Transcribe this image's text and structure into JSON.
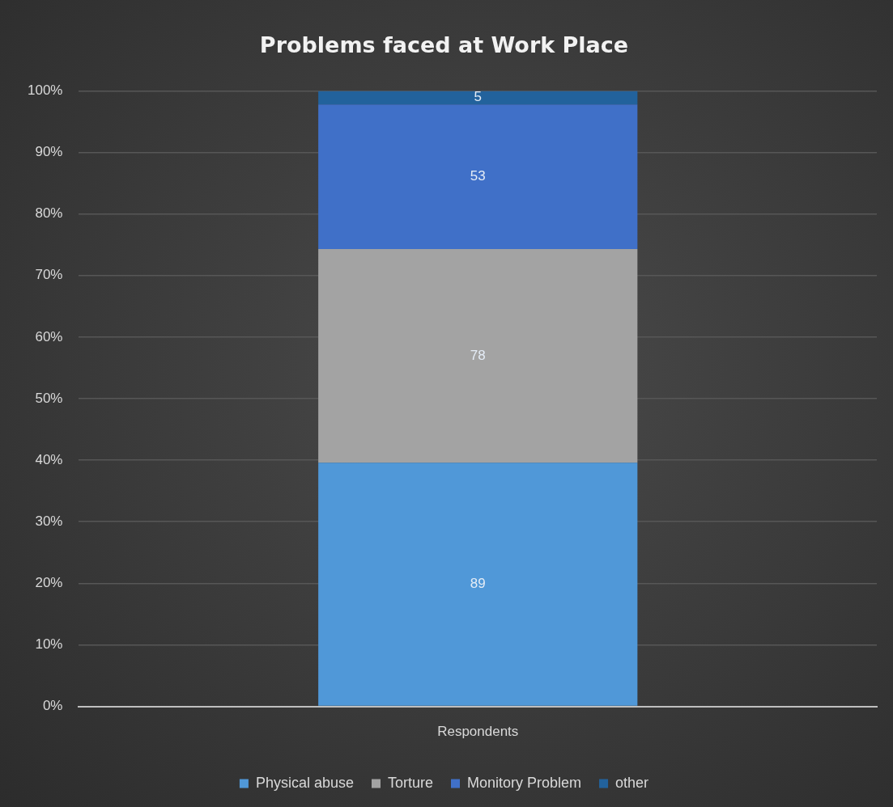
{
  "chart_data": {
    "type": "bar",
    "title": "Problems faced at Work Place",
    "categories": [
      "Respondents"
    ],
    "series": [
      {
        "name": "Physical abuse",
        "color": "#5098d8",
        "values": [
          39.6
        ]
      },
      {
        "name": "Torture",
        "color": "#a3a3a3",
        "values": [
          34.7
        ]
      },
      {
        "name": "Monitory Problem",
        "color": "#4070c8",
        "values": [
          23.5
        ]
      },
      {
        "name": "other",
        "color": "#22629c",
        "values": [
          2.2
        ]
      }
    ],
    "stacked": true,
    "ylim": [
      0,
      100
    ],
    "yticks": [
      {
        "value": 0,
        "label": "0%"
      },
      {
        "value": 10,
        "label": "10%"
      },
      {
        "value": 20,
        "label": "20%"
      },
      {
        "value": 30,
        "label": "30%"
      },
      {
        "value": 40,
        "label": "40%"
      },
      {
        "value": 50,
        "label": "50%"
      },
      {
        "value": 60,
        "label": "60%"
      },
      {
        "value": 70,
        "label": "70%"
      },
      {
        "value": 80,
        "label": "80%"
      },
      {
        "value": 90,
        "label": "90%"
      },
      {
        "value": 100,
        "label": "100%"
      }
    ],
    "annotations": [
      "89",
      "78",
      "53",
      "5"
    ],
    "grid": "y",
    "legend": "bottom"
  }
}
